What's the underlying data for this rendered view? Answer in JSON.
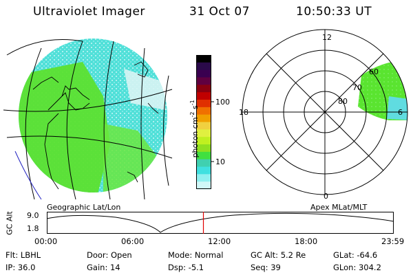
{
  "header": {
    "title": "Ultraviolet Imager",
    "date": "31 Oct 07",
    "time": "10:50:33 UT"
  },
  "colorbar": {
    "unit_label": "photon cm",
    "unit_sup1": "-2",
    "unit_s": "s",
    "unit_sup2": "-1",
    "tick_high": "100",
    "tick_low": "10",
    "colors": [
      "#000000",
      "#2a0a4a",
      "#3a0050",
      "#600040",
      "#8a0010",
      "#c00000",
      "#e03000",
      "#f07000",
      "#f0a000",
      "#f0d040",
      "#e0f040",
      "#c0f020",
      "#90e020",
      "#40e040",
      "#40d0b0",
      "#40e0e0",
      "#90f0f0",
      "#d0f8f8"
    ]
  },
  "polar": {
    "mlt_top": "12",
    "mlt_left": "18",
    "mlt_right": "6",
    "mlt_bottom": "0",
    "lat_80": "80",
    "lat_70": "70",
    "lat_60": "60"
  },
  "labels": {
    "geo": "Geographic Lat/Lon",
    "apex": "Apex MLat/MLT"
  },
  "altitude_plot": {
    "axis_title": "GC Alt",
    "y_max": "9.0",
    "y_min": "1.8",
    "x_ticks": [
      "00:00",
      "06:00",
      "12:00",
      "18:00",
      "23:59"
    ],
    "marker_fraction": 0.4514
  },
  "info": {
    "flt": "Flt: LBHL",
    "ip": "IP: 36.0",
    "door": "Door: Open",
    "gain": "Gain: 14",
    "mode": "Mode: Normal",
    "dsp": "Dsp:   -5.1",
    "gcalt": "GC Alt: 5.2 Re",
    "seq": "Seq: 39",
    "glat": "GLat: -64.6",
    "glon": "GLon: 304.2"
  }
}
